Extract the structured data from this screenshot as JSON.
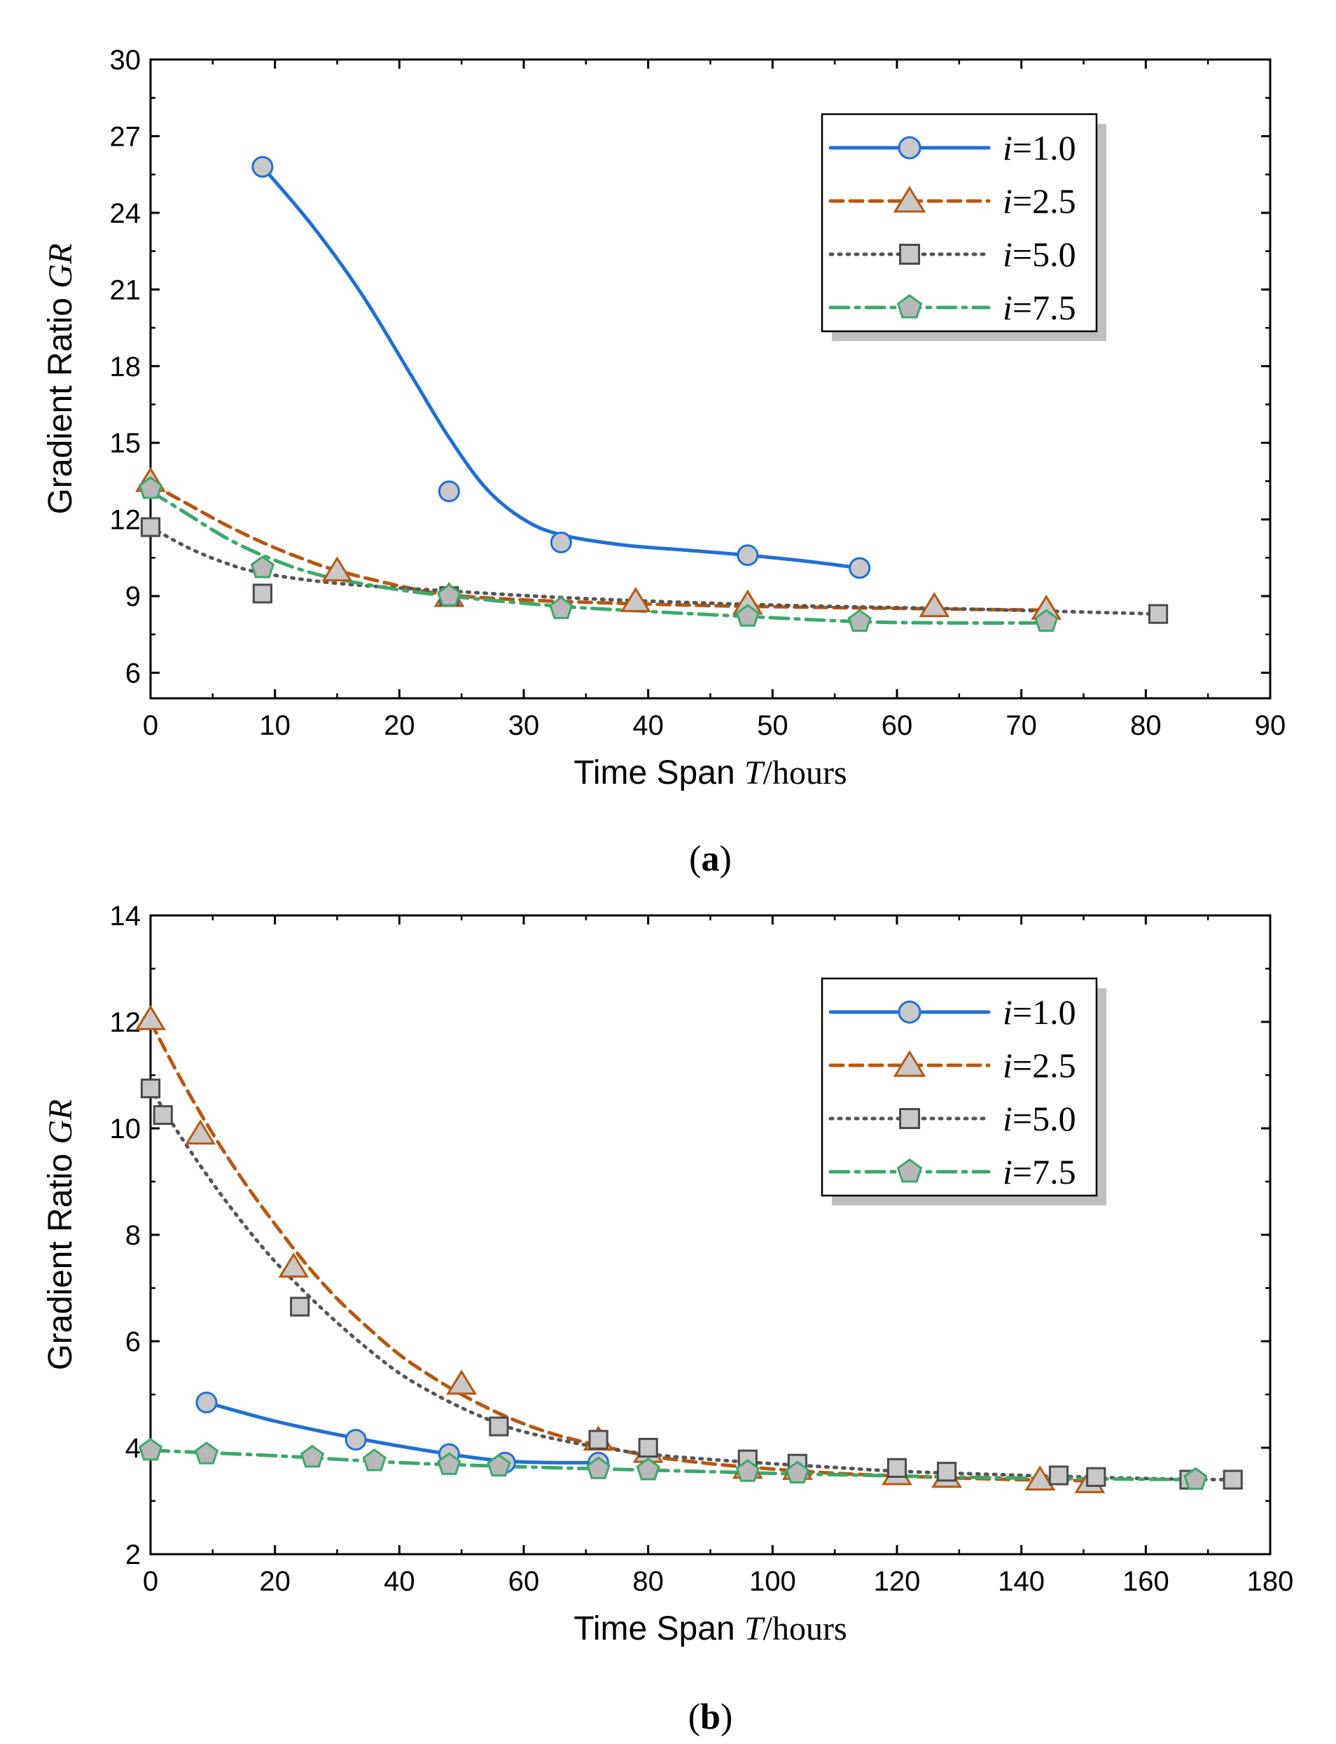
{
  "colors": {
    "blue": "#1f6fd6",
    "orange": "#b8570f",
    "gray": "#555555",
    "green": "#3aa96a",
    "marker_fill": "#c8c8c8",
    "pent_fill": "#b8b8b8"
  },
  "chart_data": [
    {
      "type": "line",
      "panel": "(a)",
      "caption_letter": "a",
      "xlabel_prefix": "Time Span ",
      "xlabel_var": "T",
      "xlabel_suffix": "/hours",
      "ylabel_prefix": "Gradient Ratio ",
      "ylabel_var": "GR",
      "xlim": [
        0,
        90
      ],
      "ylim": [
        5,
        30
      ],
      "xticks": [
        0,
        10,
        20,
        30,
        40,
        50,
        60,
        70,
        80,
        90
      ],
      "yticks": [
        6,
        9,
        12,
        15,
        18,
        21,
        24,
        27,
        30
      ],
      "legend_position": "top-right",
      "series": [
        {
          "name": "i=1.0",
          "var": "i",
          "rest": "=1.0",
          "color_key": "blue",
          "marker": "circle",
          "dash": "solid",
          "x": [
            9,
            24,
            33,
            48,
            57
          ],
          "y": [
            25.8,
            13.1,
            11.1,
            10.6,
            10.1
          ],
          "fit": [
            [
              9,
              25.8
            ],
            [
              13,
              23.5
            ],
            [
              17,
              20.8
            ],
            [
              21,
              17.6
            ],
            [
              24,
              15.2
            ],
            [
              27,
              13.2
            ],
            [
              30,
              12.0
            ],
            [
              33,
              11.4
            ],
            [
              38,
              11.0
            ],
            [
              43,
              10.8
            ],
            [
              48,
              10.6
            ],
            [
              53,
              10.35
            ],
            [
              57,
              10.1
            ]
          ]
        },
        {
          "name": "i=2.5",
          "var": "i",
          "rest": "=2.5",
          "color_key": "orange",
          "marker": "triangle",
          "dash": "dashed",
          "x": [
            0,
            15,
            24,
            39,
            48,
            63,
            72
          ],
          "y": [
            13.5,
            10.0,
            9.0,
            8.8,
            8.7,
            8.6,
            8.5
          ],
          "fit": [
            [
              0,
              13.4
            ],
            [
              3,
              12.6
            ],
            [
              6,
              11.8
            ],
            [
              9,
              11.1
            ],
            [
              12,
              10.5
            ],
            [
              15,
              10.0
            ],
            [
              20,
              9.4
            ],
            [
              24,
              9.05
            ],
            [
              30,
              8.85
            ],
            [
              39,
              8.7
            ],
            [
              48,
              8.6
            ],
            [
              63,
              8.5
            ],
            [
              72,
              8.45
            ]
          ]
        },
        {
          "name": "i=5.0",
          "var": "i",
          "rest": "=5.0",
          "color_key": "gray",
          "marker": "square",
          "dash": "dotted",
          "x": [
            0,
            9,
            24,
            81
          ],
          "y": [
            11.7,
            9.1,
            9.0,
            8.3
          ],
          "fit": [
            [
              0,
              11.7
            ],
            [
              3,
              10.9
            ],
            [
              6,
              10.3
            ],
            [
              9,
              9.9
            ],
            [
              15,
              9.5
            ],
            [
              24,
              9.2
            ],
            [
              35,
              8.9
            ],
            [
              50,
              8.65
            ],
            [
              65,
              8.5
            ],
            [
              81,
              8.3
            ]
          ]
        },
        {
          "name": "i=7.5",
          "var": "i",
          "rest": "=7.5",
          "color_key": "green",
          "marker": "pentagon",
          "dash": "dashdot",
          "x": [
            0,
            9,
            24,
            33,
            48,
            57,
            72
          ],
          "y": [
            13.2,
            10.1,
            9.0,
            8.5,
            8.2,
            8.0,
            8.0
          ],
          "fit": [
            [
              0,
              13.1
            ],
            [
              3,
              12.2
            ],
            [
              6,
              11.3
            ],
            [
              9,
              10.6
            ],
            [
              13,
              9.9
            ],
            [
              18,
              9.4
            ],
            [
              24,
              9.0
            ],
            [
              33,
              8.6
            ],
            [
              40,
              8.4
            ],
            [
              48,
              8.2
            ],
            [
              57,
              8.0
            ],
            [
              64,
              7.95
            ],
            [
              72,
              7.95
            ]
          ]
        }
      ]
    },
    {
      "type": "line",
      "panel": "(b)",
      "caption_letter": "b",
      "xlabel_prefix": "Time Span ",
      "xlabel_var": "T",
      "xlabel_suffix": "/hours",
      "ylabel_prefix": "Gradient Ratio ",
      "ylabel_var": "GR",
      "xlim": [
        0,
        180
      ],
      "ylim": [
        2,
        14
      ],
      "xticks": [
        0,
        20,
        40,
        60,
        80,
        100,
        120,
        140,
        160,
        180
      ],
      "yticks": [
        2,
        4,
        6,
        8,
        10,
        12,
        14
      ],
      "legend_position": "top-right",
      "series": [
        {
          "name": "i=1.0",
          "var": "i",
          "rest": "=1.0",
          "color_key": "blue",
          "marker": "circle",
          "dash": "solid",
          "x": [
            9,
            33,
            48,
            57,
            72
          ],
          "y": [
            4.85,
            4.15,
            3.88,
            3.72,
            3.72
          ],
          "fit": [
            [
              9,
              4.85
            ],
            [
              20,
              4.5
            ],
            [
              33,
              4.18
            ],
            [
              48,
              3.88
            ],
            [
              57,
              3.75
            ],
            [
              65,
              3.72
            ],
            [
              72,
              3.72
            ]
          ]
        },
        {
          "name": "i=2.5",
          "var": "i",
          "rest": "=2.5",
          "color_key": "orange",
          "marker": "triangle",
          "dash": "dashed",
          "x": [
            0,
            8,
            23,
            50,
            72,
            80,
            96,
            104,
            120,
            128,
            143,
            151
          ],
          "y": [
            12.05,
            9.9,
            7.4,
            5.2,
            4.15,
            3.92,
            3.62,
            3.6,
            3.5,
            3.45,
            3.4,
            3.35
          ],
          "fit": [
            [
              0,
              12.0
            ],
            [
              5,
              10.9
            ],
            [
              10,
              9.9
            ],
            [
              15,
              9.0
            ],
            [
              20,
              8.2
            ],
            [
              25,
              7.45
            ],
            [
              30,
              6.8
            ],
            [
              35,
              6.25
            ],
            [
              40,
              5.75
            ],
            [
              45,
              5.35
            ],
            [
              50,
              5.0
            ],
            [
              55,
              4.7
            ],
            [
              60,
              4.45
            ],
            [
              65,
              4.25
            ],
            [
              70,
              4.1
            ],
            [
              80,
              3.85
            ],
            [
              90,
              3.7
            ],
            [
              100,
              3.6
            ],
            [
              110,
              3.52
            ],
            [
              120,
              3.47
            ],
            [
              130,
              3.43
            ],
            [
              140,
              3.4
            ],
            [
              151,
              3.38
            ]
          ]
        },
        {
          "name": "i=5.0",
          "var": "i",
          "rest": "=5.0",
          "color_key": "gray",
          "marker": "square",
          "dash": "dotted",
          "x": [
            0,
            2,
            24,
            56,
            72,
            80,
            96,
            104,
            120,
            128,
            146,
            152,
            167,
            174
          ],
          "y": [
            10.75,
            10.25,
            6.65,
            4.4,
            4.15,
            4.0,
            3.78,
            3.7,
            3.62,
            3.55,
            3.48,
            3.45,
            3.4,
            3.4
          ],
          "fit": [
            [
              0,
              10.75
            ],
            [
              4,
              10.0
            ],
            [
              8,
              9.3
            ],
            [
              12,
              8.65
            ],
            [
              16,
              8.05
            ],
            [
              20,
              7.5
            ],
            [
              25,
              6.9
            ],
            [
              30,
              6.35
            ],
            [
              35,
              5.85
            ],
            [
              40,
              5.4
            ],
            [
              45,
              5.05
            ],
            [
              50,
              4.75
            ],
            [
              55,
              4.5
            ],
            [
              60,
              4.3
            ],
            [
              70,
              4.05
            ],
            [
              80,
              3.88
            ],
            [
              90,
              3.78
            ],
            [
              100,
              3.7
            ],
            [
              110,
              3.63
            ],
            [
              120,
              3.56
            ],
            [
              135,
              3.5
            ],
            [
              150,
              3.45
            ],
            [
              165,
              3.41
            ],
            [
              174,
              3.4
            ]
          ]
        },
        {
          "name": "i=7.5",
          "var": "i",
          "rest": "=7.5",
          "color_key": "green",
          "marker": "pentagon",
          "dash": "dashdot",
          "x": [
            0,
            9,
            26,
            36,
            48,
            56,
            72,
            80,
            96,
            104,
            168
          ],
          "y": [
            3.95,
            3.88,
            3.82,
            3.75,
            3.68,
            3.65,
            3.6,
            3.58,
            3.55,
            3.52,
            3.4
          ],
          "fit": [
            [
              0,
              3.95
            ],
            [
              20,
              3.85
            ],
            [
              40,
              3.72
            ],
            [
              60,
              3.64
            ],
            [
              80,
              3.58
            ],
            [
              100,
              3.52
            ],
            [
              120,
              3.47
            ],
            [
              140,
              3.43
            ],
            [
              168,
              3.4
            ]
          ]
        }
      ]
    }
  ]
}
